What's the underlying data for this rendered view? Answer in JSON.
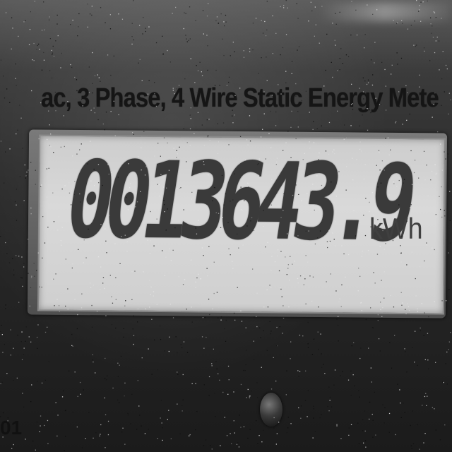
{
  "meter": {
    "label": "ac, 3 Phase, 4 Wire Static Energy Mete",
    "reading": "0013643.9",
    "unit": "kWh",
    "bottom_left_text": "01"
  }
}
